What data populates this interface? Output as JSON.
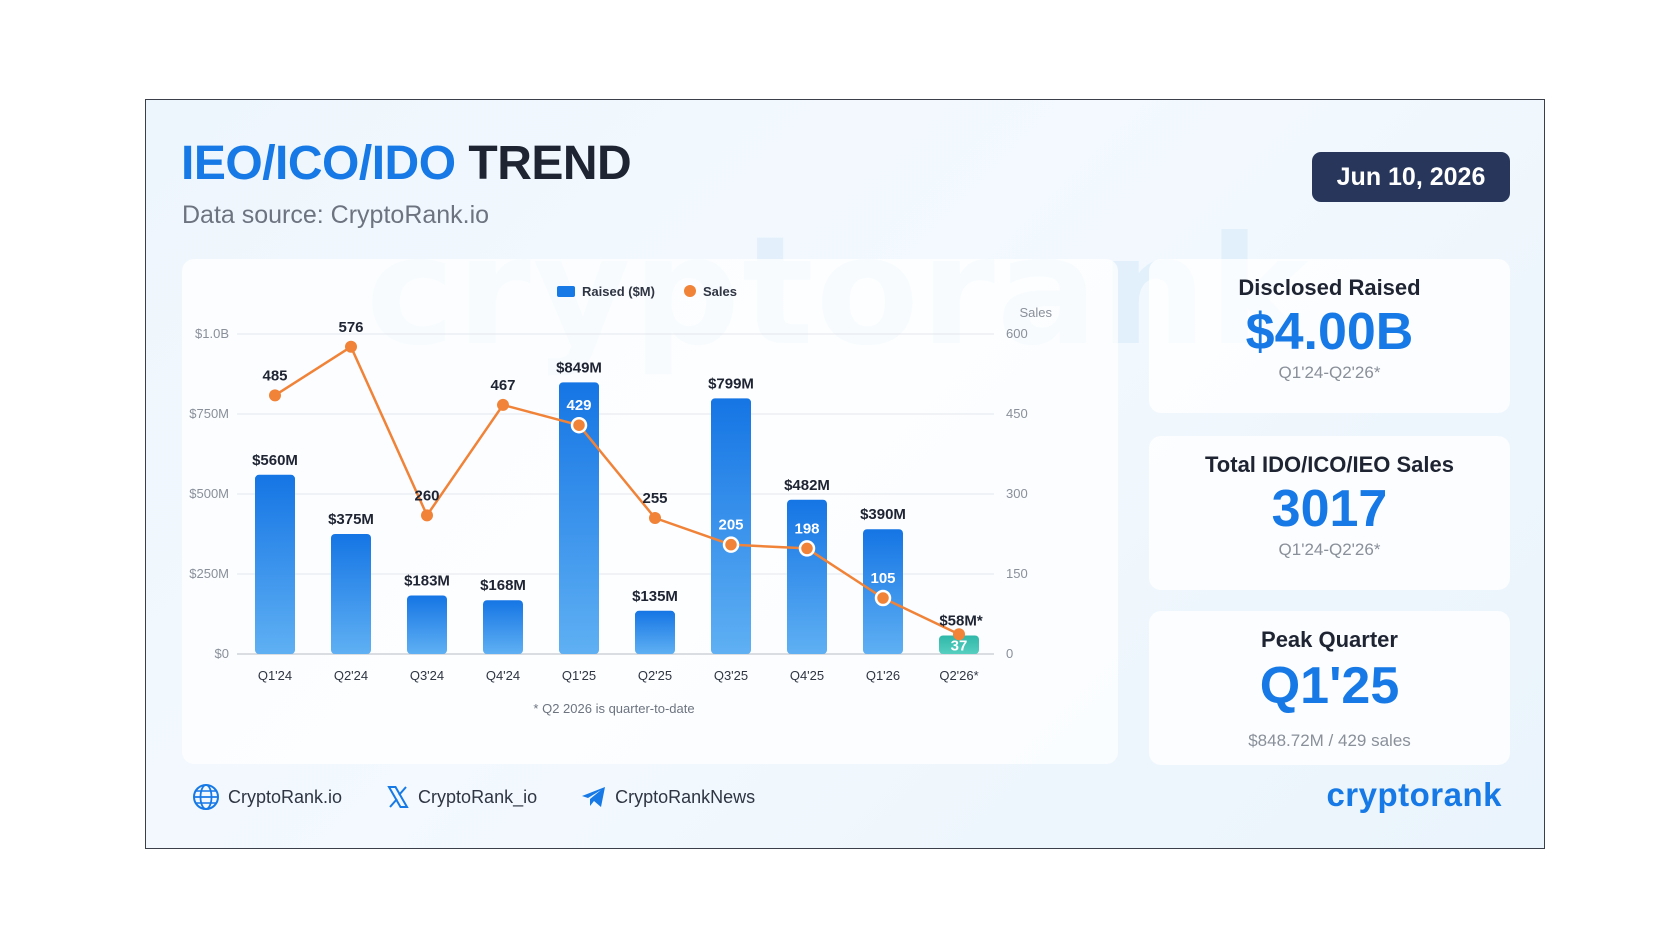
{
  "header": {
    "title_accent": "IEO/ICO/IDO",
    "title_rest": "TREND",
    "subtitle": "Data source: CryptoRank.io",
    "date": "Jun 10, 2026"
  },
  "watermark_text": "cryptorank",
  "colors": {
    "accent": "#1679e6",
    "line": "#f08338",
    "last_bar": "#3cc0b4",
    "badge": "#27365a"
  },
  "chart_data": {
    "type": "bar",
    "title": "",
    "categories": [
      "Q1'24",
      "Q2'24",
      "Q3'24",
      "Q4'24",
      "Q1'25",
      "Q2'25",
      "Q3'25",
      "Q4'25",
      "Q1'26",
      "Q2'26*"
    ],
    "series": [
      {
        "name": "Raised ($M)",
        "type": "bar",
        "axis": "left",
        "values": [
          560,
          375,
          183,
          168,
          849,
          135,
          799,
          482,
          390,
          58
        ],
        "labels": [
          "$560M",
          "$375M",
          "$183M",
          "$168M",
          "$849M",
          "$135M",
          "$799M",
          "$482M",
          "$390M",
          "$58M*"
        ]
      },
      {
        "name": "Sales",
        "type": "line",
        "axis": "right",
        "values": [
          485,
          576,
          260,
          467,
          429,
          255,
          205,
          198,
          105,
          37
        ],
        "labels": [
          "485",
          "576",
          "260",
          "467",
          "429",
          "255",
          "205",
          "198",
          "105",
          "37"
        ]
      }
    ],
    "left_axis": {
      "range": [
        0,
        1000
      ],
      "ticks": [
        0,
        250,
        500,
        750,
        1000
      ],
      "tick_labels": [
        "$0",
        "$250M",
        "$500M",
        "$750M",
        "$1.0B"
      ]
    },
    "right_axis": {
      "label": "Sales",
      "range": [
        0,
        600
      ],
      "ticks": [
        0,
        150,
        300,
        450,
        600
      ],
      "tick_labels": [
        "0",
        "150",
        "300",
        "450",
        "600"
      ]
    },
    "legend_placement": "top-center",
    "grid": true,
    "footnote": "* Q2 2026 is quarter-to-date"
  },
  "stats": [
    {
      "label": "Disclosed Raised",
      "value": "$4.00B",
      "note": "Q1'24-Q2'26*"
    },
    {
      "label": "Total IDO/ICO/IEO Sales",
      "value": "3017",
      "note": "Q1'24-Q2'26*"
    },
    {
      "label": "Peak Quarter",
      "value": "Q1'25",
      "note": "$848.72M / 429 sales"
    }
  ],
  "footer": {
    "links": [
      {
        "icon": "globe-icon",
        "label": "CryptoRank.io"
      },
      {
        "icon": "x-logo-icon",
        "label": "CryptoRank_io"
      },
      {
        "icon": "telegram-icon",
        "label": "CryptoRankNews"
      }
    ],
    "brand": "cryptorank"
  }
}
